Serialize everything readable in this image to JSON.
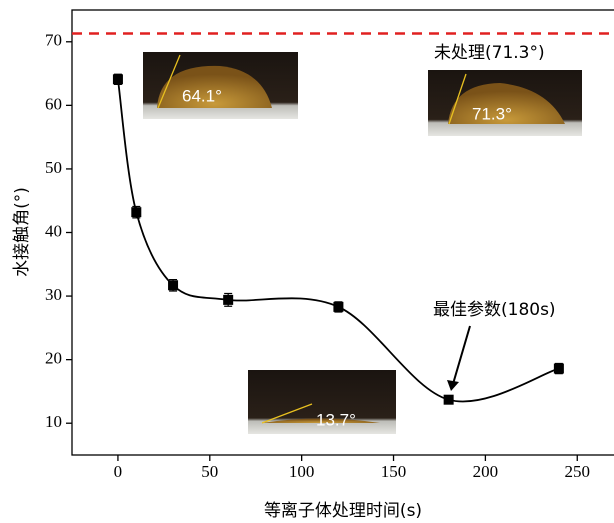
{
  "chart_data": {
    "type": "line",
    "x_label": "等离子体处理时间(s)",
    "y_label": "水接触角(°)",
    "x": [
      0,
      10,
      30,
      60,
      120,
      180,
      240
    ],
    "series": [
      {
        "color": "#000000",
        "values": [
          64.1,
          43.2,
          31.7,
          29.4,
          28.3,
          13.7,
          18.6
        ],
        "errors": [
          0.8,
          0.9,
          0.9,
          1.0,
          0.8,
          0.5,
          0.8
        ]
      }
    ],
    "xlim": [
      -25,
      270
    ],
    "xticks": [
      0,
      50,
      100,
      150,
      200,
      250
    ],
    "ylim": [
      5,
      75
    ],
    "yticks": [
      10,
      20,
      30,
      40,
      50,
      60,
      70
    ],
    "reference_line": {
      "value": 71.3,
      "color": "#e02020"
    },
    "annotations": [
      "未处理(71.3°)",
      "最佳参数(180s)"
    ],
    "inset_labels": [
      "64.1°",
      "71.3°",
      "13.7°"
    ]
  }
}
